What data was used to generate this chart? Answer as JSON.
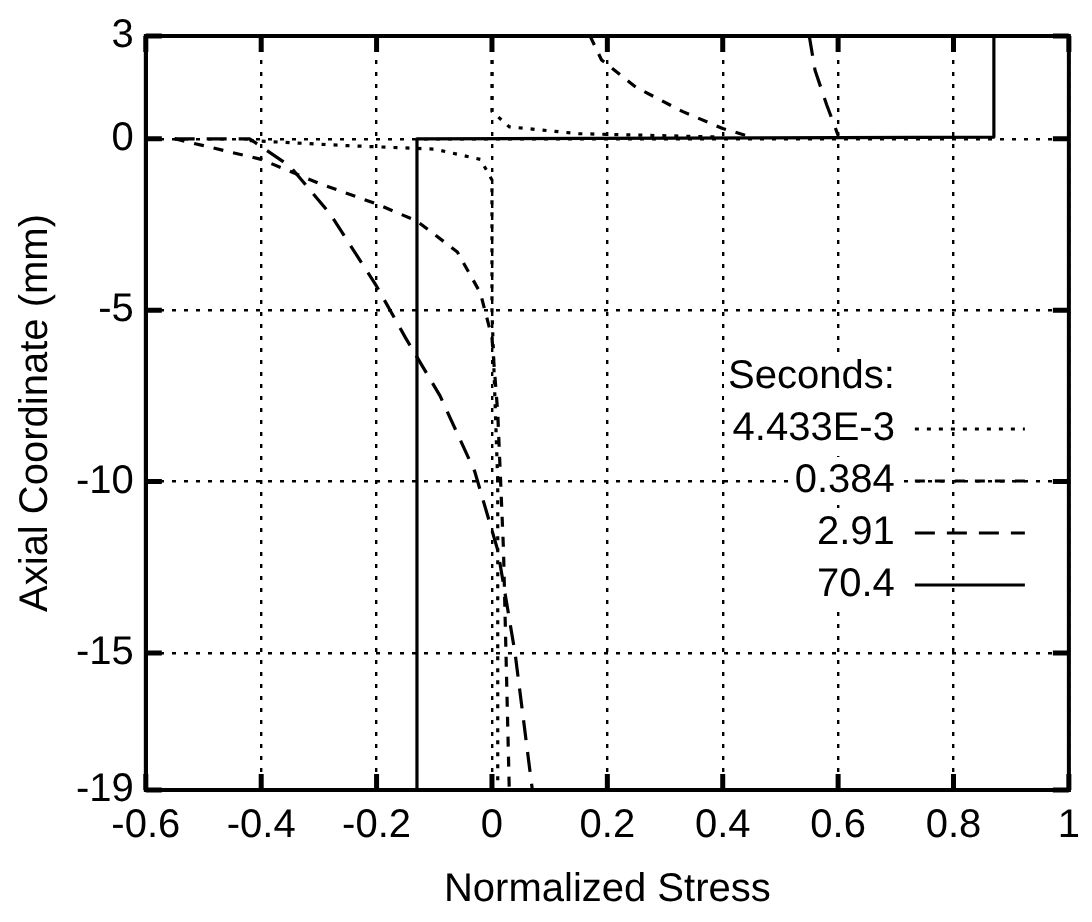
{
  "chart_data": {
    "type": "line",
    "xlabel": "Normalized Stress",
    "ylabel": "Axial Coordinate (mm)",
    "legend_title": "Seconds:",
    "legend": "right",
    "grid": true,
    "marker": "none",
    "xlim": [
      -0.6,
      1
    ],
    "xticks": [
      -0.6,
      -0.4,
      -0.2,
      0,
      0.2,
      0.4,
      0.6,
      0.8,
      1
    ],
    "ylim": [
      -19,
      3
    ],
    "yticks": [
      -19,
      -15,
      -10,
      -5,
      0,
      3
    ],
    "series": [
      {
        "name": "4.433E-3",
        "color": "#000000",
        "line_style": "dotted",
        "x": [
          0,
          0,
          0.03,
          0.15,
          0.4,
          null,
          -0.42,
          -0.25,
          -0.1,
          -0.02,
          0,
          0,
          0.01,
          0.01
        ],
        "values": [
          3,
          0.8,
          0.35,
          0.15,
          0.05,
          null,
          -0.05,
          -0.2,
          -0.3,
          -0.6,
          -1.2,
          -5,
          -10,
          -19
        ]
      },
      {
        "name": "0.384",
        "color": "#000000",
        "line_style": "dashed",
        "x": [
          0.17,
          0.19,
          0.25,
          0.33,
          0.4,
          0.45,
          null,
          -0.55,
          -0.5,
          -0.4,
          -0.3,
          -0.2,
          -0.13,
          -0.06,
          -0.02,
          0,
          0.01,
          0.02,
          0.03
        ],
        "values": [
          3,
          2.3,
          1.5,
          0.8,
          0.3,
          0.05,
          null,
          0,
          -0.2,
          -0.6,
          -1.3,
          -1.9,
          -2.4,
          -3.3,
          -4.5,
          -5.8,
          -8,
          -12,
          -19
        ]
      },
      {
        "name": "2.91",
        "color": "#000000",
        "line_style": "dashed",
        "x": [
          0.55,
          0.56,
          0.58,
          0.6,
          null,
          -0.55,
          -0.42,
          -0.35,
          -0.28,
          -0.2,
          -0.15,
          -0.09,
          -0.03,
          0.01,
          0.04,
          0.07
        ],
        "values": [
          3,
          2,
          1,
          0.1,
          null,
          0,
          0,
          -0.8,
          -2.2,
          -4.3,
          -5.8,
          -7.5,
          -9.7,
          -12,
          -15,
          -19
        ]
      },
      {
        "name": "70.4",
        "color": "#000000",
        "line_style": "solid",
        "x": [
          0.87,
          0.87,
          -0.13,
          -0.13
        ],
        "values": [
          3,
          0.05,
          0,
          -19
        ]
      }
    ]
  }
}
